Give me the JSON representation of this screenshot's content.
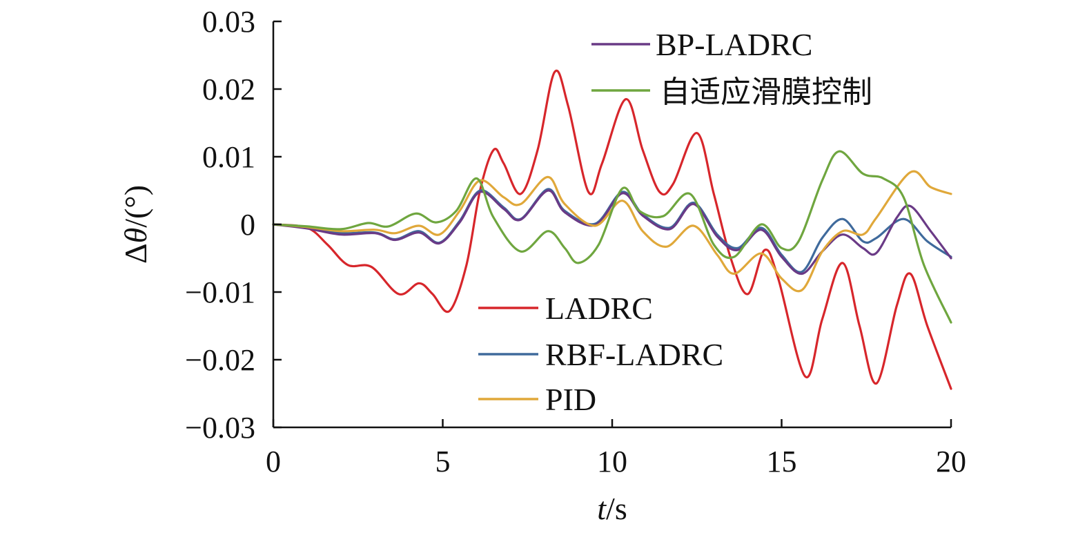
{
  "chart_data": {
    "type": "line",
    "xlabel_var": "t",
    "xlabel_unit": "/s",
    "ylabel_prefix": "Δ",
    "ylabel_var": "θ",
    "ylabel_unit": "/(°)",
    "xlim": [
      0,
      20
    ],
    "ylim": [
      -0.03,
      0.03
    ],
    "x_ticks": [
      "0",
      "5",
      "10",
      "15",
      "20"
    ],
    "y_ticks": [
      "0.03",
      "0.02",
      "0.01",
      "0",
      "−0.01",
      "−0.02",
      "−0.03"
    ],
    "grid": false,
    "series": [
      {
        "name": "LADRC",
        "color": "#d7262b",
        "points": [
          [
            0,
            0
          ],
          [
            1,
            -0.0005
          ],
          [
            1.6,
            -0.003
          ],
          [
            2.2,
            -0.006
          ],
          [
            2.9,
            -0.0063
          ],
          [
            3.7,
            -0.0103
          ],
          [
            4.3,
            -0.0087
          ],
          [
            4.7,
            -0.0103
          ],
          [
            5.2,
            -0.0128
          ],
          [
            5.7,
            -0.006
          ],
          [
            6.1,
            0.005
          ],
          [
            6.5,
            0.011
          ],
          [
            6.8,
            0.009
          ],
          [
            7.3,
            0.0045
          ],
          [
            7.8,
            0.011
          ],
          [
            8.3,
            0.0225
          ],
          [
            8.7,
            0.0175
          ],
          [
            9.3,
            0.0048
          ],
          [
            9.7,
            0.009
          ],
          [
            10.4,
            0.0185
          ],
          [
            10.9,
            0.011
          ],
          [
            11.4,
            0.0048
          ],
          [
            11.8,
            0.006
          ],
          [
            12.5,
            0.0135
          ],
          [
            13.0,
            0.0045
          ],
          [
            13.5,
            -0.005
          ],
          [
            14.0,
            -0.0103
          ],
          [
            14.5,
            -0.0038
          ],
          [
            14.9,
            -0.008
          ],
          [
            15.7,
            -0.0225
          ],
          [
            16.2,
            -0.014
          ],
          [
            16.8,
            -0.0057
          ],
          [
            17.3,
            -0.015
          ],
          [
            17.8,
            -0.0235
          ],
          [
            18.4,
            -0.012
          ],
          [
            18.8,
            -0.0073
          ],
          [
            19.3,
            -0.015
          ],
          [
            20.0,
            -0.0243
          ]
        ]
      },
      {
        "name": "RBF-LADRC",
        "color": "#3f6a9c",
        "points": [
          [
            0,
            0
          ],
          [
            1,
            -0.0005
          ],
          [
            2,
            -0.0013
          ],
          [
            3,
            -0.0012
          ],
          [
            3.6,
            -0.0022
          ],
          [
            4.3,
            -0.001
          ],
          [
            4.9,
            -0.0027
          ],
          [
            5.5,
            0.0005
          ],
          [
            6.1,
            0.005
          ],
          [
            6.8,
            0.0025
          ],
          [
            7.3,
            0.0008
          ],
          [
            8.1,
            0.0052
          ],
          [
            8.6,
            0.002
          ],
          [
            9.5,
            0.0001
          ],
          [
            10.3,
            0.0048
          ],
          [
            10.9,
            0.0015
          ],
          [
            11.7,
            -0.0005
          ],
          [
            12.4,
            0.0032
          ],
          [
            13.1,
            -0.0015
          ],
          [
            13.7,
            -0.0035
          ],
          [
            14.4,
            -0.0005
          ],
          [
            15.0,
            -0.0045
          ],
          [
            15.6,
            -0.007
          ],
          [
            16.2,
            -0.002
          ],
          [
            16.8,
            0.0008
          ],
          [
            17.4,
            -0.0025
          ],
          [
            17.8,
            -0.002
          ],
          [
            18.6,
            0.0008
          ],
          [
            19.3,
            -0.0025
          ],
          [
            20.0,
            -0.0048
          ]
        ]
      },
      {
        "name": "BP-LADRC",
        "color": "#6a3a86",
        "points": [
          [
            0,
            0
          ],
          [
            1,
            -0.0006
          ],
          [
            2,
            -0.0015
          ],
          [
            3,
            -0.0013
          ],
          [
            3.6,
            -0.0023
          ],
          [
            4.3,
            -0.0012
          ],
          [
            4.9,
            -0.0028
          ],
          [
            5.5,
            0.0003
          ],
          [
            6.1,
            0.0048
          ],
          [
            6.8,
            0.0023
          ],
          [
            7.3,
            0.0007
          ],
          [
            8.1,
            0.005
          ],
          [
            8.6,
            0.0018
          ],
          [
            9.5,
            -0.0001
          ],
          [
            10.3,
            0.0046
          ],
          [
            10.9,
            0.0013
          ],
          [
            11.7,
            -0.0007
          ],
          [
            12.4,
            0.003
          ],
          [
            13.1,
            -0.0018
          ],
          [
            13.7,
            -0.0038
          ],
          [
            14.4,
            -0.0008
          ],
          [
            15.0,
            -0.0048
          ],
          [
            15.6,
            -0.0073
          ],
          [
            16.2,
            -0.004
          ],
          [
            16.8,
            -0.0015
          ],
          [
            17.4,
            -0.0035
          ],
          [
            17.8,
            -0.0042
          ],
          [
            18.4,
            0.001
          ],
          [
            18.8,
            0.0027
          ],
          [
            19.4,
            -0.001
          ],
          [
            20.0,
            -0.005
          ]
        ]
      },
      {
        "name": "PID",
        "color": "#e0a83a",
        "points": [
          [
            0,
            0
          ],
          [
            1,
            -0.0004
          ],
          [
            2,
            -0.001
          ],
          [
            3,
            -0.0008
          ],
          [
            3.6,
            -0.0013
          ],
          [
            4.3,
            -0.0002
          ],
          [
            4.9,
            -0.0015
          ],
          [
            5.5,
            0.002
          ],
          [
            6.1,
            0.0065
          ],
          [
            6.8,
            0.004
          ],
          [
            7.3,
            0.003
          ],
          [
            8.1,
            0.007
          ],
          [
            8.6,
            0.003
          ],
          [
            9.5,
            -0.0002
          ],
          [
            10.3,
            0.0035
          ],
          [
            10.9,
            -0.001
          ],
          [
            11.6,
            -0.0033
          ],
          [
            12.4,
            -0.0002
          ],
          [
            13.1,
            -0.0045
          ],
          [
            13.6,
            -0.0073
          ],
          [
            14.4,
            -0.0043
          ],
          [
            15.0,
            -0.008
          ],
          [
            15.6,
            -0.0097
          ],
          [
            16.2,
            -0.004
          ],
          [
            16.8,
            -0.001
          ],
          [
            17.4,
            -0.0015
          ],
          [
            17.8,
            0.001
          ],
          [
            18.8,
            0.0077
          ],
          [
            19.4,
            0.0055
          ],
          [
            20.0,
            0.0045
          ]
        ]
      },
      {
        "name": "自适应滑膜控制",
        "color": "#6fa63f",
        "points": [
          [
            0,
            0
          ],
          [
            1,
            -0.0003
          ],
          [
            2,
            -0.0007
          ],
          [
            2.8,
            0.0002
          ],
          [
            3.4,
            -0.0003
          ],
          [
            4.2,
            0.0016
          ],
          [
            4.8,
            0.0003
          ],
          [
            5.4,
            0.002
          ],
          [
            6.0,
            0.0068
          ],
          [
            6.5,
            0.001
          ],
          [
            7.3,
            -0.004
          ],
          [
            8.1,
            -0.001
          ],
          [
            8.6,
            -0.0035
          ],
          [
            9.0,
            -0.0057
          ],
          [
            9.6,
            -0.003
          ],
          [
            10.3,
            0.0053
          ],
          [
            10.8,
            0.002
          ],
          [
            11.5,
            0.0012
          ],
          [
            12.3,
            0.0045
          ],
          [
            13.0,
            -0.003
          ],
          [
            13.6,
            -0.0048
          ],
          [
            14.4,
            0
          ],
          [
            15.0,
            -0.0035
          ],
          [
            15.5,
            -0.0025
          ],
          [
            16.2,
            0.0065
          ],
          [
            16.7,
            0.0108
          ],
          [
            17.4,
            0.0075
          ],
          [
            18.0,
            0.0068
          ],
          [
            18.6,
            0.004
          ],
          [
            19.2,
            -0.006
          ],
          [
            20.0,
            -0.0145
          ]
        ]
      }
    ],
    "legend_upper": [
      "BP-LADRC",
      "自适应滑膜控制"
    ],
    "legend_lower": [
      "LADRC",
      "RBF-LADRC",
      "PID"
    ]
  }
}
